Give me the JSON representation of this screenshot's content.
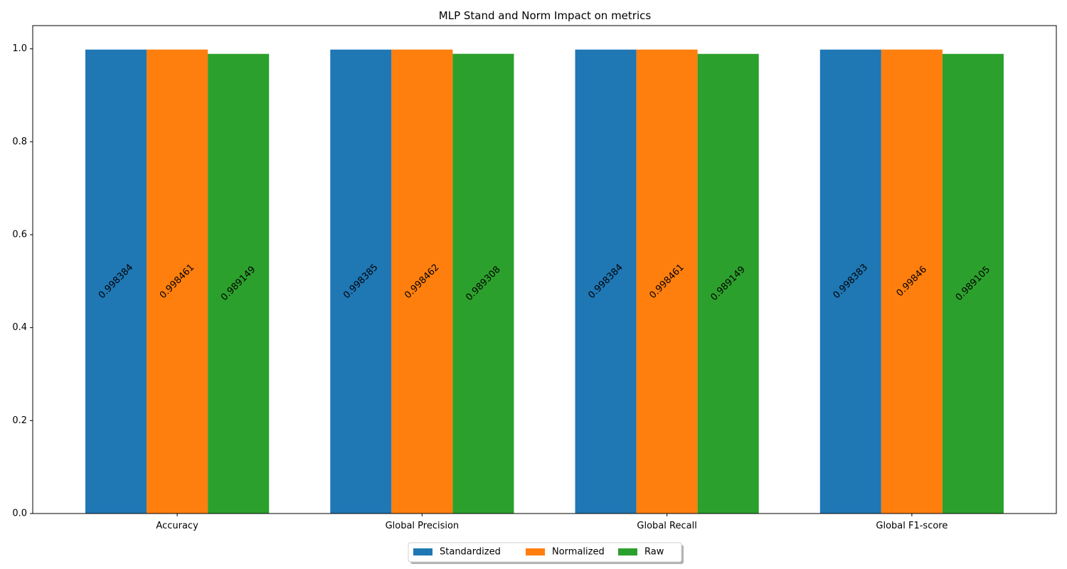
{
  "chart_data": {
    "type": "bar",
    "title": "MLP Stand and Norm Impact on metrics",
    "xlabel": "",
    "ylabel": "",
    "categories": [
      "Accuracy",
      "Global Precision",
      "Global Recall",
      "Global F1-score"
    ],
    "series": [
      {
        "name": "Standardized",
        "color": "#1f77b4",
        "values": [
          0.998384,
          0.998385,
          0.998384,
          0.998383
        ]
      },
      {
        "name": "Normalized",
        "color": "#ff7f0e",
        "values": [
          0.998461,
          0.998462,
          0.998461,
          0.99846
        ]
      },
      {
        "name": "Raw",
        "color": "#2ca02c",
        "values": [
          0.989149,
          0.989308,
          0.989149,
          0.989105
        ]
      }
    ],
    "ylim": [
      0,
      1.05
    ],
    "yticks": [
      "0.0",
      "0.2",
      "0.4",
      "0.6",
      "0.8",
      "1.0"
    ],
    "grid": false,
    "legend_position": "bottom-center"
  }
}
